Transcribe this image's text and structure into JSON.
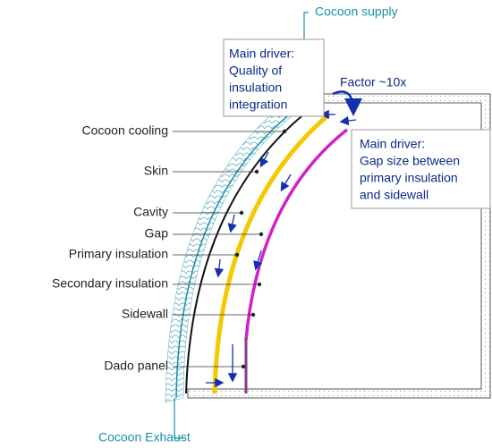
{
  "supply": "Cocoon supply",
  "exhaust": "Cocoon Exhaust",
  "factor": "Factor ~10x",
  "box_quality": {
    "lines": [
      "Main driver:",
      "Quality of",
      "insulation",
      "integration"
    ]
  },
  "box_gap": {
    "lines": [
      "Main driver:",
      "Gap size between",
      "primary insulation",
      "and sidewall"
    ]
  },
  "labels": [
    "Cocoon cooling",
    "Skin",
    "Cavity",
    "Gap",
    "Primary insulation",
    "Secondary insulation",
    "Sidewall",
    "Dado panel"
  ]
}
